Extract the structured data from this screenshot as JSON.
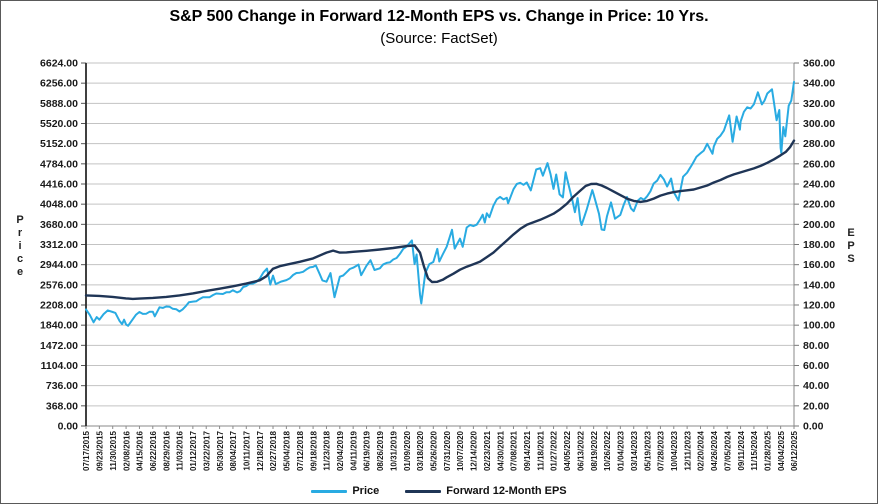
{
  "chart": {
    "title": "S&P 500 Change in Forward 12-Month EPS vs. Change in Price: 10 Yrs.",
    "subtitle": "(Source: FactSet)",
    "left_axis_title": "Price",
    "right_axis_title": "EPS",
    "legend": [
      {
        "label": "Price",
        "color": "#29ABE2"
      },
      {
        "label": "Forward 12-Month EPS",
        "color": "#1F3556"
      }
    ]
  },
  "chart_data": {
    "type": "line",
    "title": "S&P 500 Change in Forward 12-Month EPS vs. Change in Price: 10 Yrs.",
    "subtitle": "(Source: FactSet)",
    "grid": "horizontal",
    "legend_position": "bottom",
    "left_axis": {
      "label": "Price",
      "min": 0,
      "max": 6624,
      "tick_step": 368,
      "tick_format": "2dp"
    },
    "right_axis": {
      "label": "EPS",
      "min": 0,
      "max": 360,
      "tick_step": 20,
      "tick_format": "2dp"
    },
    "x_tick_labels": [
      "07/17/2015",
      "09/23/2015",
      "11/30/2015",
      "02/08/2016",
      "04/15/2016",
      "06/22/2016",
      "08/29/2016",
      "11/03/2016",
      "01/12/2017",
      "03/22/2017",
      "05/30/2017",
      "08/04/2017",
      "10/11/2017",
      "12/18/2017",
      "02/27/2018",
      "05/04/2018",
      "07/12/2018",
      "09/18/2018",
      "11/23/2018",
      "02/04/2019",
      "04/11/2019",
      "06/19/2019",
      "08/26/2019",
      "10/31/2019",
      "01/09/2020",
      "03/18/2020",
      "05/26/2020",
      "07/31/2020",
      "10/07/2020",
      "12/14/2020",
      "02/23/2021",
      "04/30/2021",
      "07/08/2021",
      "09/14/2021",
      "11/18/2021",
      "01/27/2022",
      "04/05/2022",
      "06/13/2022",
      "08/19/2022",
      "10/26/2022",
      "01/04/2023",
      "03/14/2023",
      "05/19/2023",
      "07/28/2023",
      "10/04/2023",
      "12/11/2023",
      "02/20/2024",
      "04/26/2024",
      "07/05/2024",
      "09/11/2024",
      "11/15/2024",
      "01/28/2025",
      "04/04/2025",
      "06/12/2025"
    ],
    "series": [
      {
        "name": "Price",
        "axis": "left",
        "color": "#29ABE2",
        "width": 2,
        "jagged": true,
        "points": [
          [
            0,
            2127
          ],
          [
            0.57,
            1893
          ],
          [
            0.8,
            1988
          ],
          [
            1,
            1939
          ],
          [
            1.63,
            2110
          ],
          [
            2,
            2080
          ],
          [
            2.2,
            2064
          ],
          [
            2.5,
            1922
          ],
          [
            2.7,
            1859
          ],
          [
            2.85,
            1940
          ],
          [
            3,
            1853
          ],
          [
            3.15,
            1829
          ],
          [
            3.5,
            1948
          ],
          [
            4,
            2081
          ],
          [
            4.5,
            2047
          ],
          [
            5,
            2085
          ],
          [
            5.15,
            2001
          ],
          [
            5.5,
            2166
          ],
          [
            6,
            2180
          ],
          [
            6.5,
            2139
          ],
          [
            7,
            2089
          ],
          [
            7.7,
            2259
          ],
          [
            8,
            2270
          ],
          [
            8.5,
            2316
          ],
          [
            9,
            2348
          ],
          [
            9.5,
            2388
          ],
          [
            10,
            2413
          ],
          [
            10.5,
            2440
          ],
          [
            11,
            2477
          ],
          [
            11.3,
            2438
          ],
          [
            12,
            2555
          ],
          [
            12.5,
            2599
          ],
          [
            13,
            2690
          ],
          [
            13.55,
            2873
          ],
          [
            13.8,
            2581
          ],
          [
            14,
            2744
          ],
          [
            14.2,
            2589
          ],
          [
            14.6,
            2635
          ],
          [
            15,
            2663
          ],
          [
            15.5,
            2755
          ],
          [
            16,
            2798
          ],
          [
            16.5,
            2857
          ],
          [
            17,
            2904
          ],
          [
            17.2,
            2931
          ],
          [
            17.5,
            2768
          ],
          [
            17.7,
            2656
          ],
          [
            18,
            2633
          ],
          [
            18.3,
            2790
          ],
          [
            18.6,
            2351
          ],
          [
            19,
            2725
          ],
          [
            19.5,
            2804
          ],
          [
            20,
            2888
          ],
          [
            20.4,
            2945
          ],
          [
            20.6,
            2752
          ],
          [
            21,
            2926
          ],
          [
            21.3,
            3026
          ],
          [
            21.6,
            2847
          ],
          [
            22,
            2878
          ],
          [
            22.5,
            2977
          ],
          [
            23,
            3038
          ],
          [
            23.5,
            3141
          ],
          [
            24,
            3275
          ],
          [
            24.4,
            3386
          ],
          [
            24.6,
            2954
          ],
          [
            24.75,
            3130
          ],
          [
            25,
            2398
          ],
          [
            25.1,
            2237
          ],
          [
            25.4,
            2790
          ],
          [
            25.7,
            2955
          ],
          [
            26,
            2992
          ],
          [
            26.3,
            3232
          ],
          [
            26.45,
            3002
          ],
          [
            26.7,
            3130
          ],
          [
            27,
            3271
          ],
          [
            27.4,
            3581
          ],
          [
            27.6,
            3237
          ],
          [
            28,
            3419
          ],
          [
            28.2,
            3270
          ],
          [
            28.5,
            3622
          ],
          [
            29,
            3647
          ],
          [
            29.5,
            3768
          ],
          [
            29.7,
            3855
          ],
          [
            29.85,
            3714
          ],
          [
            30,
            3881
          ],
          [
            30.2,
            3811
          ],
          [
            30.5,
            4020
          ],
          [
            31,
            4181
          ],
          [
            31.5,
            4164
          ],
          [
            31.6,
            4063
          ],
          [
            32,
            4321
          ],
          [
            32.5,
            4437
          ],
          [
            33,
            4443
          ],
          [
            33.3,
            4300
          ],
          [
            33.7,
            4680
          ],
          [
            34,
            4705
          ],
          [
            34.2,
            4568
          ],
          [
            34.55,
            4797
          ],
          [
            35,
            4327
          ],
          [
            35.2,
            4589
          ],
          [
            35.45,
            4226
          ],
          [
            35.7,
            4171
          ],
          [
            35.9,
            4631
          ],
          [
            36,
            4525
          ],
          [
            36.4,
            4131
          ],
          [
            36.6,
            3901
          ],
          [
            36.8,
            4158
          ],
          [
            37,
            3750
          ],
          [
            37.1,
            3667
          ],
          [
            37.5,
            3961
          ],
          [
            37.9,
            4305
          ],
          [
            38,
            4228
          ],
          [
            38.4,
            3873
          ],
          [
            38.6,
            3586
          ],
          [
            38.8,
            3577
          ],
          [
            39,
            3831
          ],
          [
            39.3,
            4080
          ],
          [
            39.6,
            3783
          ],
          [
            40,
            3853
          ],
          [
            40.5,
            4179
          ],
          [
            40.8,
            3970
          ],
          [
            41,
            3919
          ],
          [
            41.3,
            4109
          ],
          [
            42,
            4192
          ],
          [
            42.5,
            4426
          ],
          [
            43,
            4582
          ],
          [
            43.5,
            4370
          ],
          [
            43.8,
            4516
          ],
          [
            44,
            4264
          ],
          [
            44.35,
            4117
          ],
          [
            44.7,
            4550
          ],
          [
            45,
            4622
          ],
          [
            45.4,
            4783
          ],
          [
            46,
            4976
          ],
          [
            46.5,
            5150
          ],
          [
            46.9,
            4967
          ],
          [
            47,
            5100
          ],
          [
            47.5,
            5300
          ],
          [
            48,
            5567
          ],
          [
            48.15,
            5667
          ],
          [
            48.4,
            5186
          ],
          [
            48.7,
            5648
          ],
          [
            48.95,
            5408
          ],
          [
            49,
            5554
          ],
          [
            49.5,
            5815
          ],
          [
            50,
            5871
          ],
          [
            50.3,
            6090
          ],
          [
            50.6,
            5868
          ],
          [
            50.8,
            5942
          ],
          [
            51,
            6068
          ],
          [
            51.35,
            6144
          ],
          [
            51.7,
            5580
          ],
          [
            51.9,
            5767
          ],
          [
            52,
            5074
          ],
          [
            52.05,
            4983
          ],
          [
            52.2,
            5456
          ],
          [
            52.35,
            5287
          ],
          [
            52.6,
            5844
          ],
          [
            52.8,
            5940
          ],
          [
            53,
            6280
          ]
        ]
      },
      {
        "name": "Forward 12-Month EPS",
        "axis": "right",
        "color": "#1F3556",
        "width": 2.4,
        "jagged": false,
        "points": [
          [
            0,
            129.5
          ],
          [
            1,
            129
          ],
          [
            2,
            128
          ],
          [
            3,
            126.5
          ],
          [
            3.5,
            126
          ],
          [
            4,
            126.3
          ],
          [
            5,
            127
          ],
          [
            6,
            128
          ],
          [
            7,
            129.5
          ],
          [
            8,
            131.5
          ],
          [
            9,
            134
          ],
          [
            10,
            136.2
          ],
          [
            11,
            138.5
          ],
          [
            12,
            141.2
          ],
          [
            13,
            144.5
          ],
          [
            13.5,
            148.5
          ],
          [
            14,
            156
          ],
          [
            14.5,
            158.5
          ],
          [
            15,
            160
          ],
          [
            16,
            162.8
          ],
          [
            17,
            166.2
          ],
          [
            18,
            172
          ],
          [
            18.5,
            174
          ],
          [
            19,
            172
          ],
          [
            19.5,
            172.2
          ],
          [
            20,
            172.8
          ],
          [
            21,
            173.8
          ],
          [
            22,
            175
          ],
          [
            23,
            176.5
          ],
          [
            24,
            178.4
          ],
          [
            24.6,
            179
          ],
          [
            25,
            172
          ],
          [
            25.3,
            158
          ],
          [
            25.6,
            146.5
          ],
          [
            25.9,
            142.8
          ],
          [
            26.3,
            143
          ],
          [
            26.7,
            145
          ],
          [
            27,
            147.5
          ],
          [
            27.5,
            151
          ],
          [
            28,
            155
          ],
          [
            28.5,
            158
          ],
          [
            29,
            160.5
          ],
          [
            29.5,
            163
          ],
          [
            30,
            167.5
          ],
          [
            30.5,
            172
          ],
          [
            31,
            178
          ],
          [
            31.5,
            184
          ],
          [
            32,
            190
          ],
          [
            32.5,
            195.5
          ],
          [
            33,
            199.5
          ],
          [
            33.5,
            202
          ],
          [
            34,
            204.5
          ],
          [
            34.5,
            207.5
          ],
          [
            35,
            210.5
          ],
          [
            35.5,
            215
          ],
          [
            36,
            220.5
          ],
          [
            36.5,
            227.5
          ],
          [
            37,
            233.5
          ],
          [
            37.4,
            238
          ],
          [
            37.8,
            240
          ],
          [
            38.2,
            240.2
          ],
          [
            38.6,
            238.5
          ],
          [
            39,
            236
          ],
          [
            39.5,
            232.5
          ],
          [
            40,
            229
          ],
          [
            40.5,
            225.5
          ],
          [
            41,
            223.2
          ],
          [
            41.5,
            222.2
          ],
          [
            42,
            223.2
          ],
          [
            42.5,
            225.5
          ],
          [
            43,
            228.5
          ],
          [
            43.5,
            230.5
          ],
          [
            44,
            232
          ],
          [
            44.5,
            233
          ],
          [
            45,
            233.8
          ],
          [
            45.5,
            234.5
          ],
          [
            46,
            236.5
          ],
          [
            46.5,
            238.5
          ],
          [
            47,
            241.5
          ],
          [
            47.5,
            244
          ],
          [
            48,
            247
          ],
          [
            48.5,
            249.5
          ],
          [
            49,
            251.5
          ],
          [
            49.5,
            253.5
          ],
          [
            50,
            255.5
          ],
          [
            50.5,
            258
          ],
          [
            51,
            261
          ],
          [
            51.5,
            264.5
          ],
          [
            52,
            268.5
          ],
          [
            52.4,
            272
          ],
          [
            52.7,
            276.5
          ],
          [
            53,
            283
          ]
        ]
      }
    ]
  }
}
